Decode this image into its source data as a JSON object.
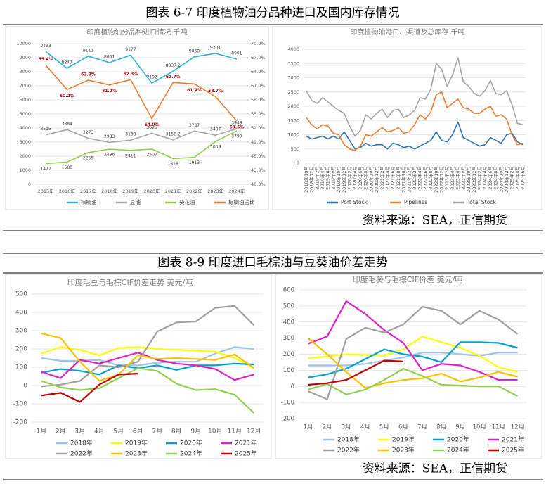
{
  "figures": [
    {
      "title": "图表 6-7   印度植物油分品种进口及国内库存情况",
      "source": "资料来源：SEA，正信期货"
    },
    {
      "title": "图表 8-9   印度进口毛棕油与豆葵油价差走势",
      "source": "资料来源：SEA，正信期货"
    }
  ],
  "chart_data": [
    {
      "type": "line",
      "title": "印度植物油分品种进口情况 千吨",
      "categories": [
        "2015年",
        "2016年",
        "2017年",
        "2018年",
        "2019年",
        "2020年",
        "2021年",
        "2022年",
        "2023年",
        "2024年"
      ],
      "ylim": [
        0,
        10000
      ],
      "yticks": [
        0,
        1000,
        2000,
        3000,
        4000,
        5000,
        6000,
        7000,
        8000,
        9000,
        10000
      ],
      "y2lim": [
        40,
        70
      ],
      "y2ticks": [
        {
          "value": 40,
          "label": "40.0%"
        },
        {
          "value": 43,
          "label": "43.0%"
        },
        {
          "value": 46,
          "label": "46.0%"
        },
        {
          "value": 49,
          "label": "49.0%"
        },
        {
          "value": 52,
          "label": "52.0%"
        },
        {
          "value": 55,
          "label": "55.0%"
        },
        {
          "value": 58,
          "label": "58.0%"
        },
        {
          "value": 61,
          "label": "61.0%"
        },
        {
          "value": 64,
          "label": "64.0%"
        },
        {
          "value": 67,
          "label": "67.0%"
        },
        {
          "value": 70,
          "label": "70.0%"
        }
      ],
      "grid": true,
      "legend": "bottom",
      "data_labels": true,
      "series": [
        {
          "name": "棕榈油",
          "color": "#2bb0d8",
          "values": [
            9433,
            8247,
            9111,
            8651,
            9177,
            7192,
            8037.2,
            9060,
            9301,
            8901
          ]
        },
        {
          "name": "豆油",
          "color": "#a5a5a5",
          "values": [
            3515,
            3884,
            3273,
            2983,
            3138,
            3625,
            3158.2,
            3787,
            3497,
            3949
          ]
        },
        {
          "name": "葵花油",
          "color": "#8fd14f",
          "values": [
            1477,
            1580,
            2255,
            2496,
            2411,
            2507,
            1828,
            1913,
            3039,
            3799
          ]
        },
        {
          "name": "棕榈油占比",
          "color": "#ed7d31",
          "axis": "y2",
          "values": [
            65.4,
            60.2,
            62.2,
            61.2,
            62.3,
            54.0,
            61.7,
            61.4,
            58.7,
            53.5
          ],
          "value_labels": [
            "65.4%",
            "60.2%",
            "62.2%",
            "61.2%",
            "62.3%",
            "54.0%",
            "61.7%",
            "61.4%",
            "58.7%",
            "53.5%"
          ]
        }
      ]
    },
    {
      "type": "line",
      "title": "印度植物油港口、渠道及总库存   千吨",
      "categories": [
        "2018年10月",
        "2018年12月",
        "2019年2月",
        "2019年4月",
        "2019年6月",
        "2019年8月",
        "2019年10月",
        "2019年12月",
        "2020年2月",
        "2020年4月",
        "2020年6月",
        "2020年8月",
        "2020年10月",
        "2020年12月",
        "2021年2月",
        "2021年4月",
        "2021年6月",
        "2021年8月",
        "2021年10月",
        "2021年12月",
        "2022年2月",
        "2022年4月",
        "2022年6月",
        "2022年8月",
        "2022年10月",
        "2022年12月",
        "2023年2月",
        "2023年4月",
        "2023年6月",
        "2023年8月",
        "2023年10月",
        "2023年12月",
        "2024年2月",
        "2024年4月",
        "2024年6月",
        "2024年8月",
        "2024年10月",
        "2024年12月",
        "2025年2月",
        "2025年4月",
        "2025年6月"
      ],
      "ylim": [
        0,
        4000
      ],
      "yticks": [
        0,
        500,
        1000,
        1500,
        2000,
        2500,
        3000,
        3500,
        4000
      ],
      "grid": true,
      "legend": "bottom",
      "series": [
        {
          "name": "Port Stock",
          "color": "#2e75b6",
          "values": [
            950,
            850,
            900,
            950,
            850,
            950,
            850,
            1100,
            800,
            500,
            550,
            700,
            600,
            650,
            650,
            500,
            700,
            650,
            550,
            600,
            500,
            600,
            700,
            800,
            1100,
            800,
            750,
            1000,
            1450,
            900,
            800,
            700,
            600,
            650,
            900,
            800,
            700,
            1000,
            1050,
            750,
            650
          ]
        },
        {
          "name": "Pipelines",
          "color": "#ed7d31",
          "values": [
            1600,
            1350,
            1200,
            1350,
            1300,
            1050,
            1000,
            650,
            500,
            450,
            600,
            1000,
            950,
            1100,
            1250,
            1100,
            1150,
            1250,
            1050,
            1100,
            1350,
            1700,
            1550,
            1800,
            2400,
            2500,
            1950,
            2100,
            2250,
            1950,
            1900,
            1750,
            1750,
            1900,
            2000,
            1650,
            1700,
            1550,
            1000,
            650,
            700
          ]
        },
        {
          "name": "Total Stock",
          "color": "#a5a5a5",
          "values": [
            2550,
            2200,
            2100,
            2300,
            2150,
            2000,
            1850,
            1750,
            1300,
            950,
            1150,
            1700,
            1550,
            1750,
            1900,
            1600,
            1850,
            1900,
            1600,
            1700,
            1850,
            2300,
            2250,
            2600,
            3500,
            3300,
            2700,
            3100,
            3700,
            2850,
            2700,
            2450,
            2350,
            2550,
            2900,
            2450,
            2400,
            2550,
            2050,
            1400,
            1350
          ]
        }
      ]
    },
    {
      "type": "line",
      "title": "印度毛豆与毛棕CIF价差走势 美元/吨",
      "categories": [
        "1月",
        "2月",
        "3月",
        "4月",
        "5月",
        "6月",
        "7月",
        "8月",
        "9月",
        "10月",
        "11月",
        "12月"
      ],
      "ylim": [
        -200,
        500
      ],
      "yticks": [
        -200,
        -100,
        0,
        100,
        200,
        300,
        400,
        500
      ],
      "grid": true,
      "legend": "bottom",
      "series": [
        {
          "name": "2018年",
          "color": "#9dc3e6",
          "values": [
            150,
            135,
            135,
            140,
            110,
            110,
            125,
            130,
            130,
            175,
            210,
            200
          ]
        },
        {
          "name": "2019年",
          "color": "#ffff00",
          "values": [
            175,
            210,
            195,
            165,
            205,
            210,
            200,
            195,
            190,
            185,
            150,
            95
          ]
        },
        {
          "name": "2020年",
          "color": "#00a0d0",
          "values": [
            70,
            90,
            80,
            60,
            110,
            95,
            110,
            85,
            110,
            110,
            120,
            115
          ]
        },
        {
          "name": "2021年",
          "color": "#e020c8",
          "values": [
            75,
            40,
            140,
            120,
            150,
            180,
            140,
            120,
            110,
            90,
            30,
            60
          ]
        },
        {
          "name": "2022年",
          "color": "#a0a0a0",
          "values": [
            -5,
            5,
            25,
            110,
            100,
            130,
            295,
            345,
            350,
            425,
            435,
            330
          ]
        },
        {
          "name": "2023年",
          "color": "#ffc000",
          "values": [
            285,
            260,
            130,
            25,
            60,
            165,
            145,
            150,
            145,
            140,
            170,
            95
          ]
        },
        {
          "name": "2024年",
          "color": "#92d050",
          "values": [
            25,
            -10,
            -25,
            -15,
            40,
            95,
            80,
            10,
            -25,
            -20,
            -50,
            -150
          ]
        },
        {
          "name": "2025年",
          "color": "#c00000",
          "values": [
            -55,
            -40,
            -90,
            5,
            60,
            65,
            null,
            null,
            null,
            null,
            null,
            null
          ]
        }
      ]
    },
    {
      "type": "line",
      "title": "印度毛葵与毛棕CIF价差 美元/吨",
      "categories": [
        "1月",
        "2月",
        "3月",
        "4月",
        "5月",
        "6月",
        "7月",
        "8月",
        "9月",
        "10月",
        "11月",
        "12月"
      ],
      "ylim": [
        -200,
        600
      ],
      "yticks": [
        -200,
        -100,
        0,
        100,
        200,
        300,
        400,
        500,
        600
      ],
      "grid": true,
      "legend": "bottom",
      "series": [
        {
          "name": "2018年",
          "color": "#9dc3e6",
          "values": [
            130,
            130,
            130,
            140,
            160,
            180,
            210,
            210,
            200,
            190,
            210,
            210
          ]
        },
        {
          "name": "2019年",
          "color": "#ffff00",
          "values": [
            175,
            185,
            200,
            195,
            190,
            230,
            310,
            275,
            240,
            190,
            120,
            90
          ]
        },
        {
          "name": "2020年",
          "color": "#00a0d0",
          "values": [
            55,
            75,
            110,
            170,
            230,
            200,
            185,
            150,
            275,
            275,
            270,
            240
          ]
        },
        {
          "name": "2021年",
          "color": "#e020c8",
          "values": [
            265,
            310,
            530,
            450,
            350,
            270,
            100,
            140,
            130,
            90,
            40,
            40
          ]
        },
        {
          "name": "2022年",
          "color": "#a0a0a0",
          "values": [
            -30,
            -80,
            295,
            365,
            335,
            385,
            495,
            470,
            385,
            470,
            415,
            325
          ]
        },
        {
          "name": "2023年",
          "color": "#ffc000",
          "values": [
            300,
            200,
            90,
            -10,
            20,
            40,
            50,
            80,
            30,
            55,
            90,
            60
          ]
        },
        {
          "name": "2024年",
          "color": "#92d050",
          "values": [
            -20,
            15,
            -50,
            -20,
            40,
            110,
            65,
            10,
            5,
            0,
            0,
            -60
          ]
        },
        {
          "name": "2025年",
          "color": "#c00000",
          "values": [
            10,
            20,
            40,
            100,
            160,
            155,
            null,
            null,
            null,
            null,
            null,
            null
          ]
        }
      ]
    }
  ]
}
